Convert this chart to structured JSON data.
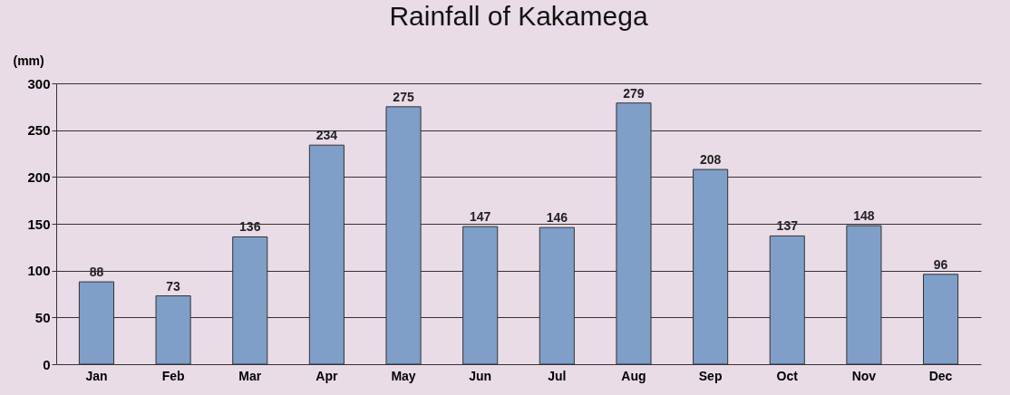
{
  "chart_data": {
    "type": "bar",
    "title": "Rainfall of Kakamega",
    "ylabel": "(mm)",
    "categories": [
      "Jan",
      "Feb",
      "Mar",
      "Apr",
      "May",
      "Jun",
      "Jul",
      "Aug",
      "Sep",
      "Oct",
      "Nov",
      "Dec"
    ],
    "values": [
      88,
      73,
      136,
      234,
      275,
      147,
      146,
      279,
      208,
      137,
      148,
      96
    ],
    "color": "#7f9fc8",
    "ylim": [
      0,
      300
    ],
    "yticks": [
      0,
      50,
      100,
      150,
      200,
      250,
      300
    ],
    "grid": "y",
    "data_labels": true
  }
}
